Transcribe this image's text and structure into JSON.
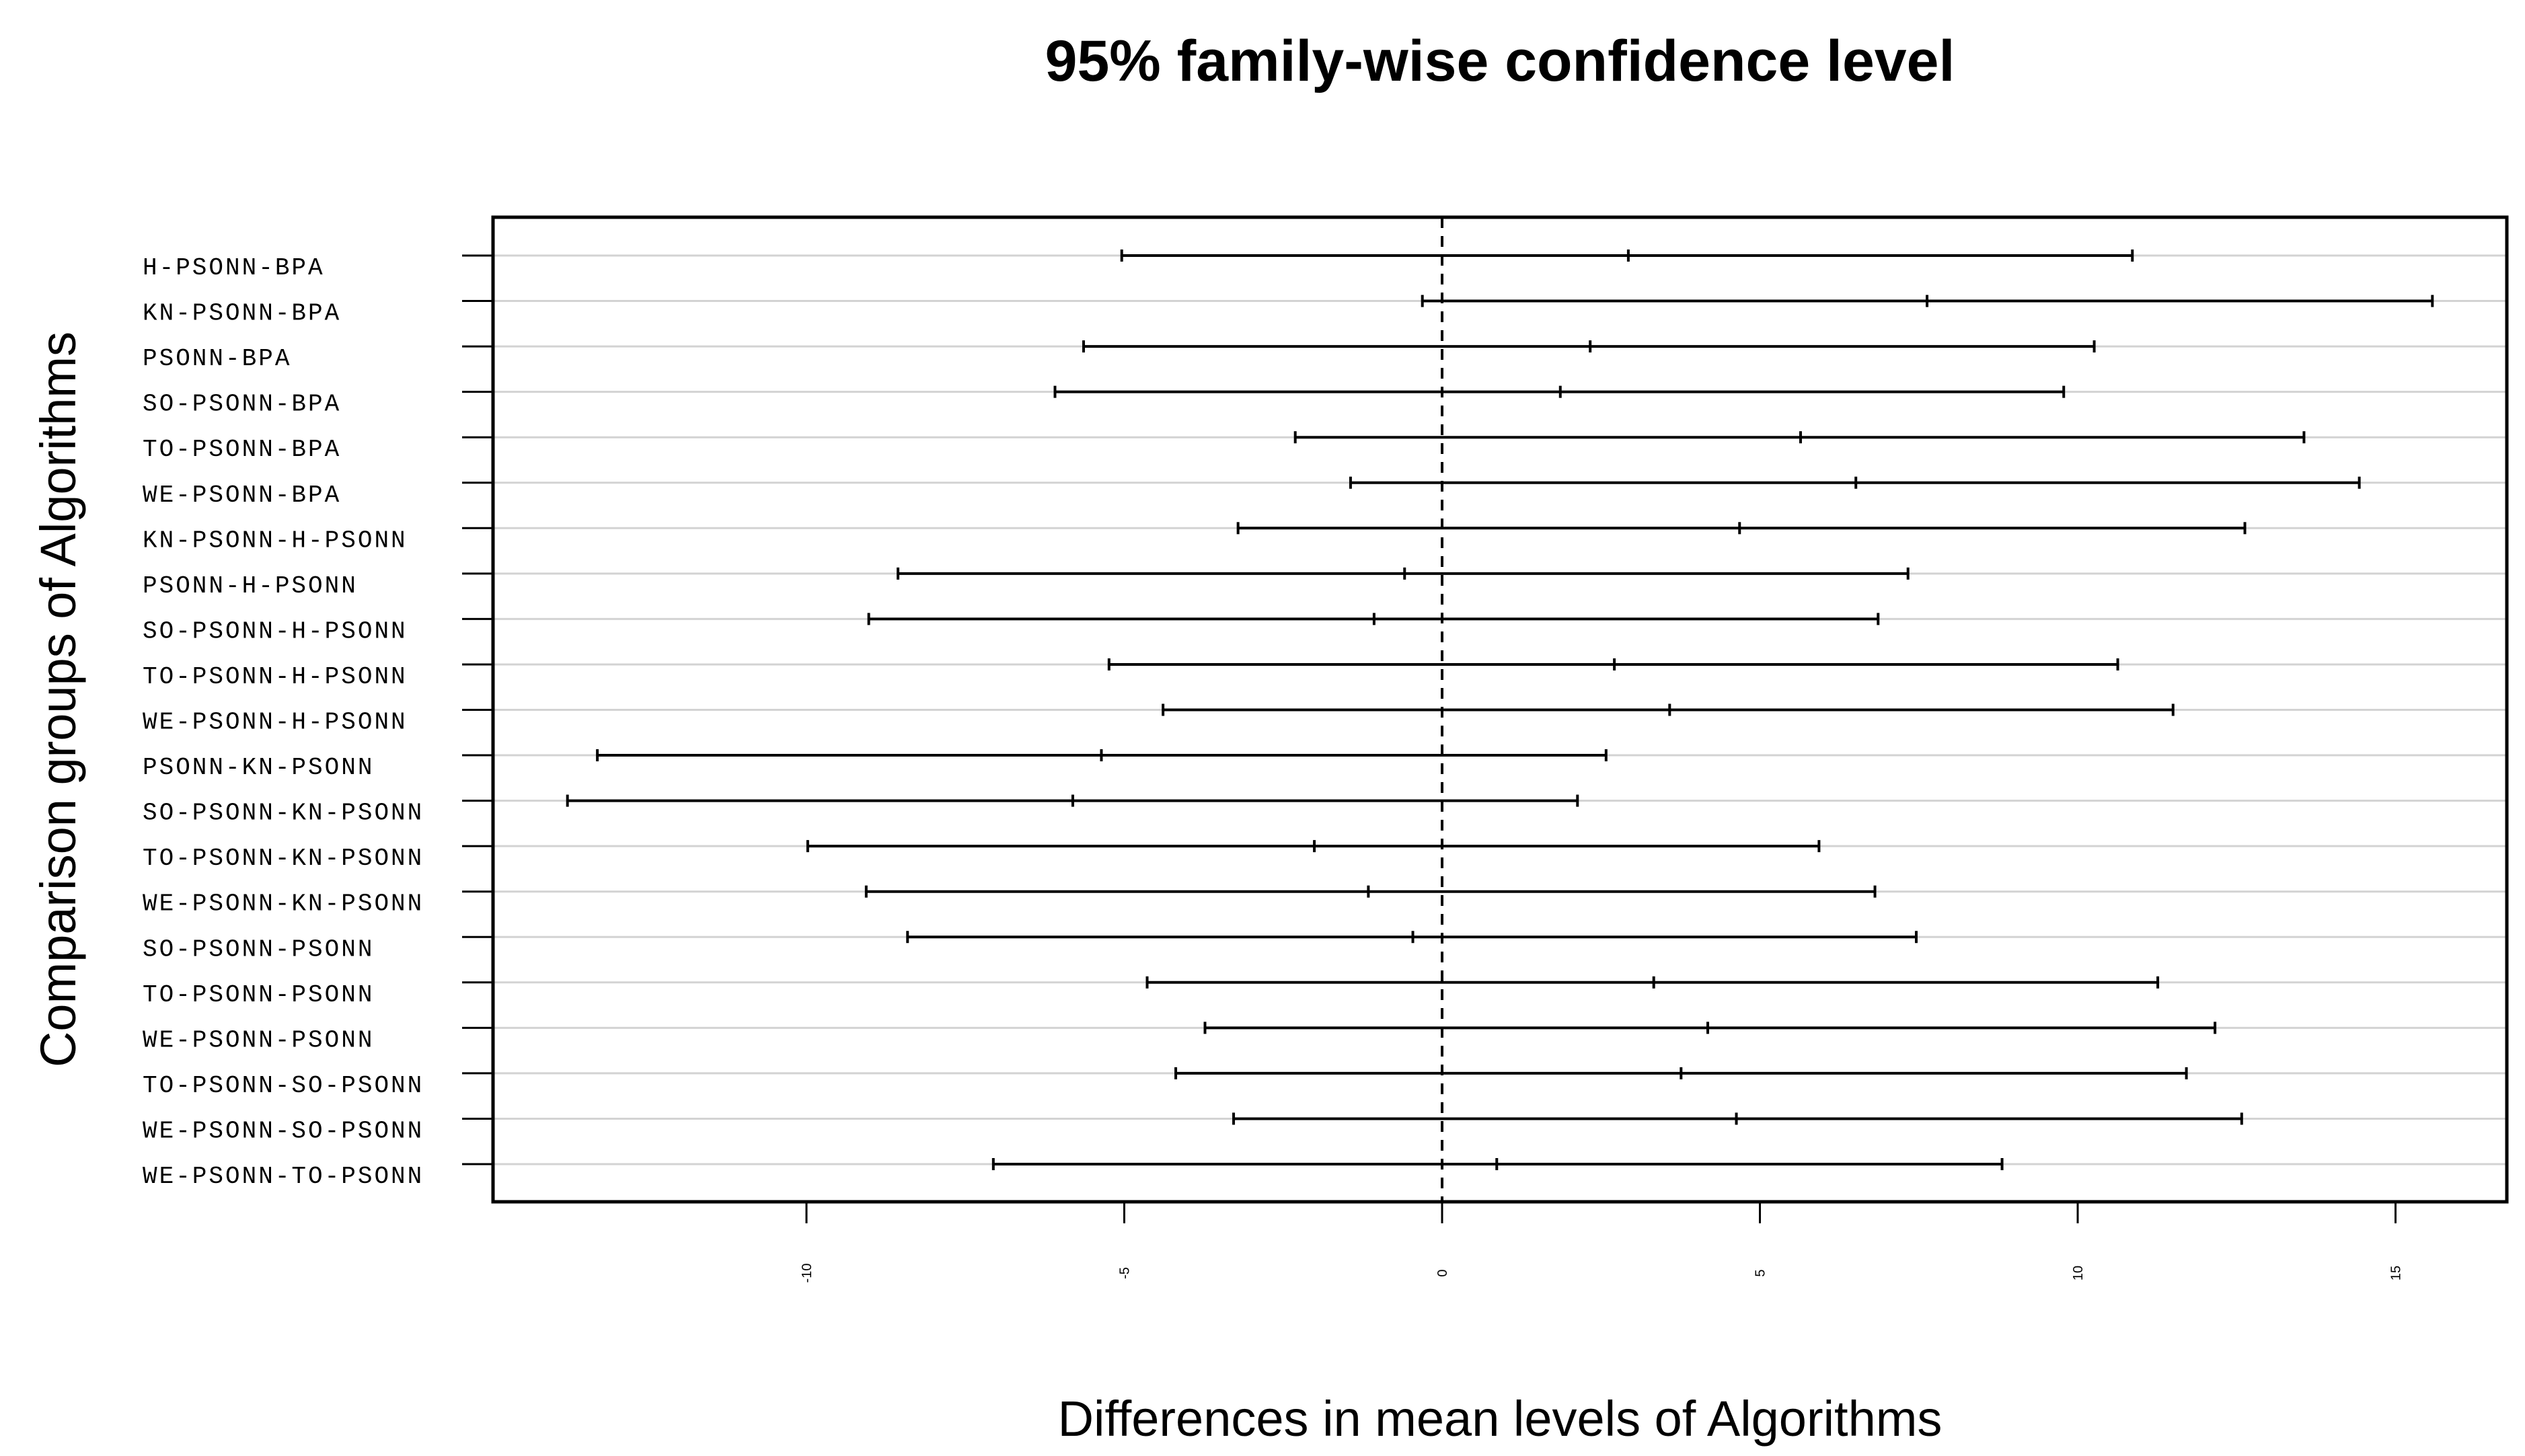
{
  "chart_data": {
    "type": "interval",
    "title": "95% family-wise confidence level",
    "xlabel": "Differences in mean levels of Algorithms",
    "ylabel": "Comparison groups of Algorithms",
    "xlim": [
      -15,
      16.7
    ],
    "xticks": [
      -10,
      -5,
      0,
      5,
      10,
      15
    ],
    "xtick_labels": [
      "-10",
      "-5",
      "0",
      "5",
      "10",
      "15"
    ],
    "reference_line": 0,
    "grid": "horizontal",
    "categories": [
      "H-PSONN-BPA",
      "KN-PSONN-BPA",
      "PSONN-BPA",
      "SO-PSONN-BPA",
      "TO-PSONN-BPA",
      "WE-PSONN-BPA",
      "KN-PSONN-H-PSONN",
      "PSONN-H-PSONN",
      "SO-PSONN-H-PSONN",
      "TO-PSONN-H-PSONN",
      "WE-PSONN-H-PSONN",
      "PSONN-KN-PSONN",
      "SO-PSONN-KN-PSONN",
      "TO-PSONN-KN-PSONN",
      "WE-PSONN-KN-PSONN",
      "SO-PSONN-PSONN",
      "TO-PSONN-PSONN",
      "WE-PSONN-PSONN",
      "TO-PSONN-SO-PSONN",
      "WE-PSONN-SO-PSONN",
      "WE-PSONN-TO-PSONN"
    ],
    "intervals": [
      {
        "lwr": -5.04,
        "diff": 2.93,
        "upr": 10.86
      },
      {
        "lwr": -0.31,
        "diff": 7.63,
        "upr": 15.58
      },
      {
        "lwr": -5.64,
        "diff": 2.33,
        "upr": 10.26
      },
      {
        "lwr": -6.09,
        "diff": 1.86,
        "upr": 9.78
      },
      {
        "lwr": -2.31,
        "diff": 5.64,
        "upr": 13.56
      },
      {
        "lwr": -1.44,
        "diff": 6.51,
        "upr": 14.43
      },
      {
        "lwr": -3.21,
        "diff": 4.68,
        "upr": 12.63
      },
      {
        "lwr": -8.56,
        "diff": -0.59,
        "upr": 7.33
      },
      {
        "lwr": -9.02,
        "diff": -1.07,
        "upr": 6.86
      },
      {
        "lwr": -5.24,
        "diff": 2.71,
        "upr": 10.63
      },
      {
        "lwr": -4.39,
        "diff": 3.58,
        "upr": 11.5
      },
      {
        "lwr": -13.29,
        "diff": -5.36,
        "upr": 2.58
      },
      {
        "lwr": -13.76,
        "diff": -5.81,
        "upr": 2.13
      },
      {
        "lwr": -9.98,
        "diff": -2.01,
        "upr": 5.93
      },
      {
        "lwr": -9.06,
        "diff": -1.16,
        "upr": 6.81
      },
      {
        "lwr": -8.41,
        "diff": -0.46,
        "upr": 7.46
      },
      {
        "lwr": -4.64,
        "diff": 3.33,
        "upr": 11.26
      },
      {
        "lwr": -3.73,
        "diff": 4.18,
        "upr": 12.16
      },
      {
        "lwr": -4.19,
        "diff": 3.76,
        "upr": 11.71
      },
      {
        "lwr": -3.28,
        "diff": 4.63,
        "upr": 12.58
      },
      {
        "lwr": -7.06,
        "diff": 0.86,
        "upr": 8.81
      }
    ]
  }
}
